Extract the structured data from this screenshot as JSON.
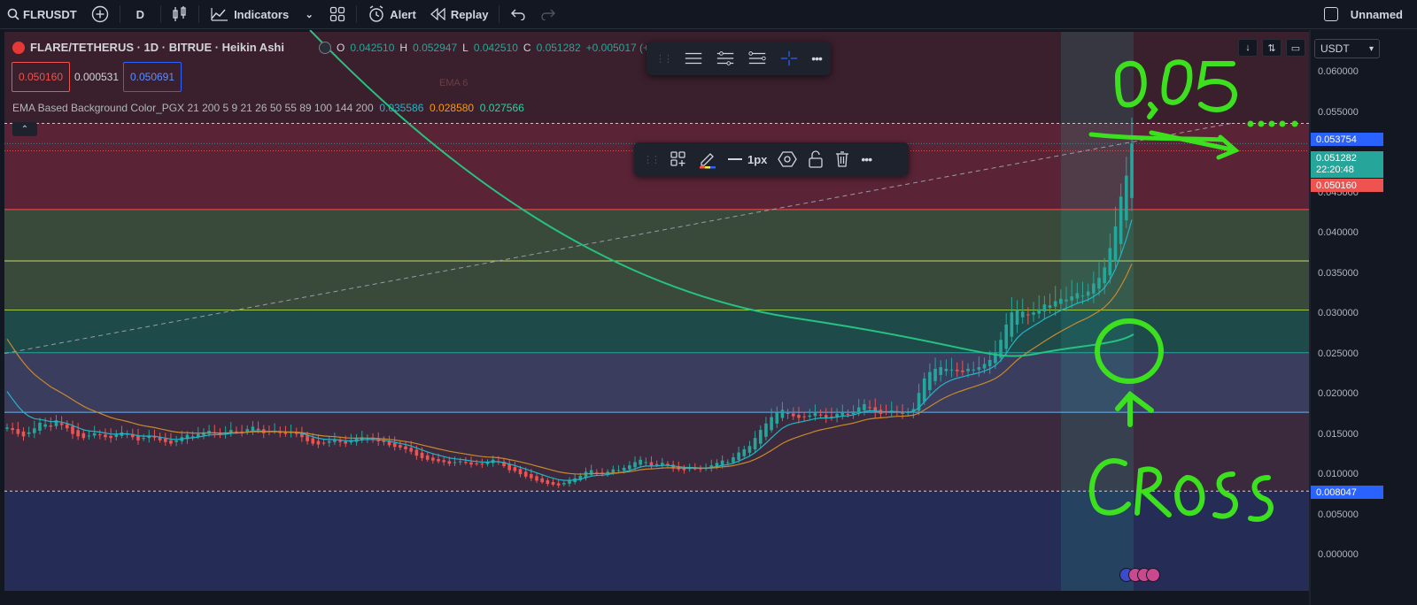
{
  "toolbar": {
    "symbol": "FLRUSDT",
    "interval": "D",
    "indicators_label": "Indicators",
    "alert_label": "Alert",
    "replay_label": "Replay",
    "layout_name": "Unnamed"
  },
  "legend": {
    "title": "FLARE/TETHERUS · 1D · BITRUE · Heikin Ashi",
    "ohlc": {
      "o_label": "O",
      "o": "0.042510",
      "h_label": "H",
      "h": "0.052947",
      "l_label": "L",
      "l": "0.042510",
      "c_label": "C",
      "c": "0.051282",
      "change": "+0.005017 (+10"
    },
    "sell_price": "0.050160",
    "spread": "0.000531",
    "buy_price": "0.050691",
    "indicator_name": "EMA Based Background Color_PGX 21 200 5 9 21 26 50 55 89 100 144 200",
    "indicator_v1": "0.035586",
    "indicator_v2": "0.028580",
    "indicator_v3": "0.027566",
    "collapse_icon": "chevron-up-icon",
    "ema_ghost": "EMA 6"
  },
  "drawing_toolbar": {
    "width_label": "1px"
  },
  "price_axis": {
    "currency": "USDT",
    "ticks": [
      "0.060000",
      "0.055000",
      "0.045000",
      "0.040000",
      "0.035000",
      "0.030000",
      "0.025000",
      "0.020000",
      "0.015000",
      "0.010000",
      "0.005000",
      "0.000000"
    ],
    "hline_top_label": "0.053754",
    "last_price": "0.051282",
    "countdown": "22:20:48",
    "bid_label": "0.050160",
    "hline_bottom_label": "0.008047"
  },
  "annotations": {
    "price_target": "0,05....",
    "cross_text": "CROSS"
  },
  "colors": {
    "up": "#26a69a",
    "down": "#ef5350",
    "ema_fast": "#22b5c7",
    "ema_mid": "#c8892e",
    "ema_slow": "#26c281",
    "marker": "#3de01f",
    "axis_blue": "#2962ff"
  },
  "chart_data": {
    "type": "candlestick",
    "y_range": [
      -0.004,
      0.066
    ],
    "close": [
      0.0159,
      0.0156,
      0.0151,
      0.0148,
      0.0153,
      0.0158,
      0.0165,
      0.0163,
      0.016,
      0.0168,
      0.0162,
      0.0158,
      0.0151,
      0.0148,
      0.0146,
      0.0149,
      0.0152,
      0.015,
      0.0147,
      0.0146,
      0.015,
      0.0153,
      0.0151,
      0.0147,
      0.0143,
      0.0146,
      0.0149,
      0.0147,
      0.0143,
      0.0141,
      0.0139,
      0.0143,
      0.0147,
      0.015,
      0.0148,
      0.0151,
      0.0153,
      0.0155,
      0.0152,
      0.015,
      0.0153,
      0.0156,
      0.0154,
      0.0153,
      0.0157,
      0.016,
      0.0156,
      0.0152,
      0.0154,
      0.0155,
      0.0152,
      0.0151,
      0.0153,
      0.0151,
      0.0147,
      0.0142,
      0.0139,
      0.0138,
      0.014,
      0.0142,
      0.0144,
      0.0141,
      0.0139,
      0.0142,
      0.0145,
      0.0147,
      0.0146,
      0.0144,
      0.0142,
      0.0141,
      0.0137,
      0.0135,
      0.0134,
      0.0132,
      0.0129,
      0.0124,
      0.0121,
      0.0119,
      0.0118,
      0.0117,
      0.0116,
      0.0114,
      0.0116,
      0.0117,
      0.0115,
      0.0113,
      0.0114,
      0.0113,
      0.0116,
      0.0119,
      0.0116,
      0.0111,
      0.0106,
      0.0105,
      0.0101,
      0.0098,
      0.0096,
      0.0093,
      0.0091,
      0.0089,
      0.0088,
      0.0087,
      0.009,
      0.0093,
      0.0096,
      0.0099,
      0.0104,
      0.0106,
      0.0103,
      0.0101,
      0.0104,
      0.0107,
      0.0106,
      0.0109,
      0.0112,
      0.0116,
      0.0119,
      0.0116,
      0.0111,
      0.0112,
      0.0115,
      0.0112,
      0.0108,
      0.0107,
      0.0106,
      0.0109,
      0.0108,
      0.0107,
      0.0109,
      0.0112,
      0.0115,
      0.0118,
      0.0116,
      0.0122,
      0.0128,
      0.0132,
      0.0136,
      0.0146,
      0.0156,
      0.0164,
      0.0172,
      0.0178,
      0.0181,
      0.0177,
      0.0173,
      0.0171,
      0.0172,
      0.0174,
      0.0177,
      0.0174,
      0.0171,
      0.0172,
      0.0176,
      0.0178,
      0.0175,
      0.0179,
      0.0184,
      0.0188,
      0.0184,
      0.0178,
      0.0176,
      0.0178,
      0.018,
      0.0178,
      0.0176,
      0.0178,
      0.0182,
      0.0202,
      0.022,
      0.0228,
      0.0232,
      0.0234,
      0.0232,
      0.0231,
      0.0229,
      0.0228,
      0.0232,
      0.0231,
      0.0234,
      0.0238,
      0.0243,
      0.0252,
      0.0268,
      0.0287,
      0.0302,
      0.0305,
      0.0303,
      0.0299,
      0.0302,
      0.0306,
      0.0312,
      0.0311,
      0.0316,
      0.0319,
      0.0318,
      0.0322,
      0.0326,
      0.0323,
      0.0328,
      0.0338,
      0.0345,
      0.0358,
      0.0382,
      0.0409,
      0.0446,
      0.0472,
      0.0512
    ]
  }
}
